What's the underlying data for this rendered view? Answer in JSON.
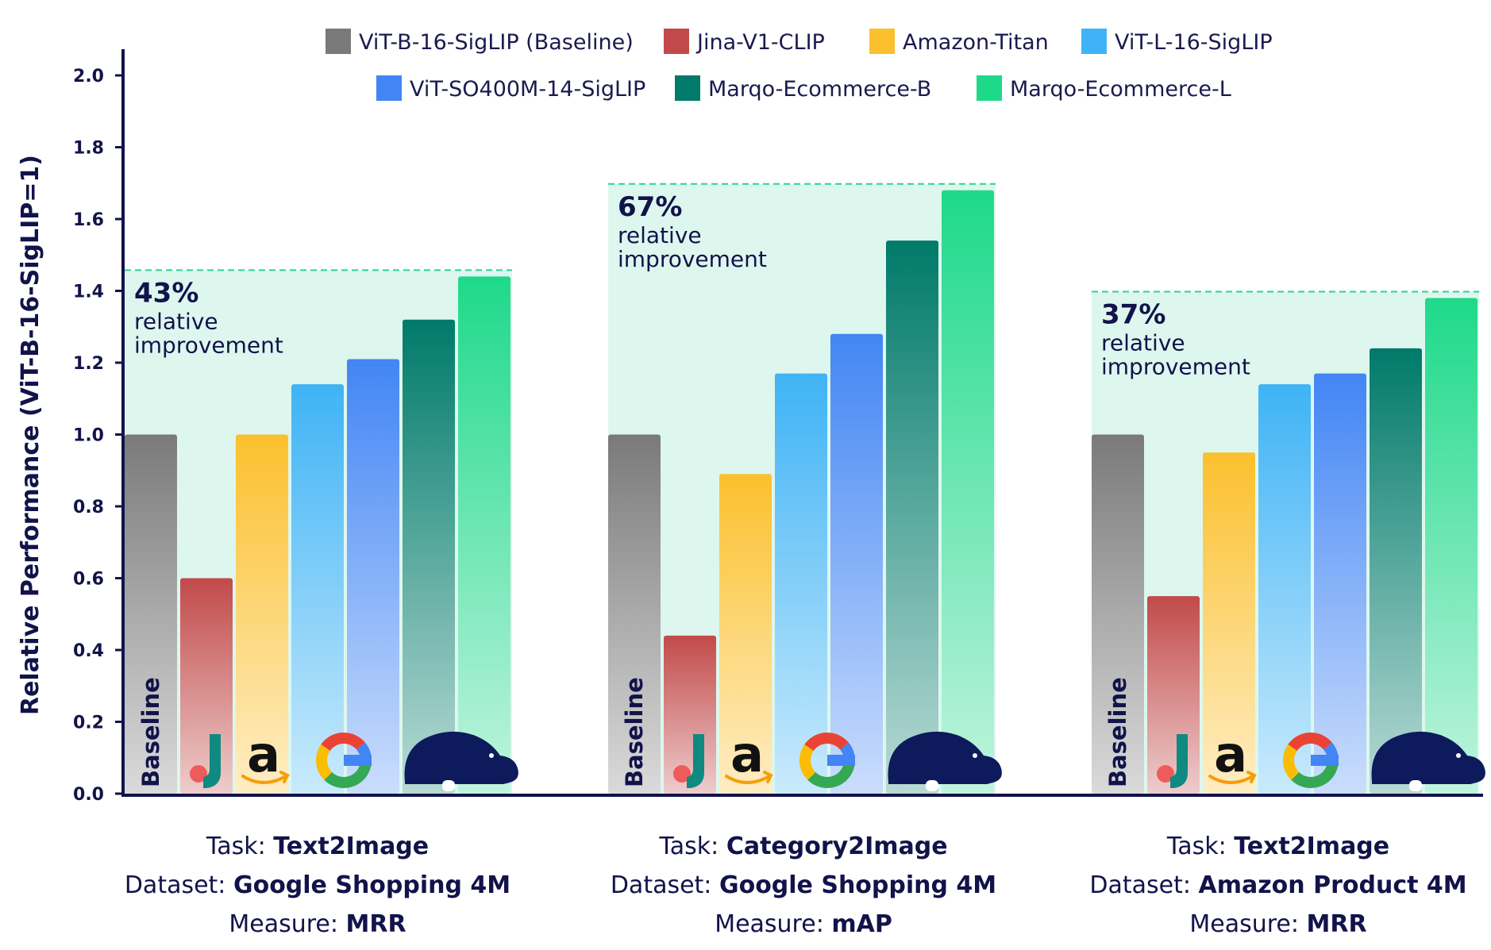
{
  "chart_data": {
    "type": "bar",
    "ylabel": "Relative Performance (ViT-B-16-SigLIP=1)",
    "ylim": [
      0,
      2.0
    ],
    "yticks": [
      "0.0",
      "0.2",
      "0.4",
      "0.6",
      "0.8",
      "1.0",
      "1.2",
      "1.4",
      "1.6",
      "1.8",
      "2.0"
    ],
    "grid": false,
    "legend_position": "top",
    "series": [
      {
        "name": "ViT-B-16-SigLIP (Baseline)",
        "color": "#7a7a7a",
        "icon": "baseline-label"
      },
      {
        "name": "Jina-V1-CLIP",
        "color": "#c24a4a",
        "icon": "jina-logo"
      },
      {
        "name": "Amazon-Titan",
        "color": "#fbc02d",
        "icon": "amazon-logo"
      },
      {
        "name": "ViT-L-16-SigLIP",
        "color": "#3fb3f5",
        "icon": "google-logo"
      },
      {
        "name": "ViT-SO400M-14-SigLIP",
        "color": "#4285f4",
        "icon": "google-logo"
      },
      {
        "name": "Marqo-Ecommerce-B",
        "color": "#007a6a",
        "icon": "hippo-logo"
      },
      {
        "name": "Marqo-Ecommerce-L",
        "color": "#1ed98a",
        "icon": "hippo-logo"
      }
    ],
    "groups": [
      {
        "task_key": "Task: ",
        "task": "Text2Image",
        "dataset_key": "Dataset: ",
        "dataset": "Google Shopping 4M",
        "measure_key": "Measure: ",
        "measure": "MRR",
        "improvement_pct": "43%",
        "improvement_l1": "relative",
        "improvement_l2": "improvement",
        "values": [
          1.0,
          0.6,
          1.0,
          1.14,
          1.21,
          1.32,
          1.44
        ]
      },
      {
        "task_key": "Task: ",
        "task": "Category2Image",
        "dataset_key": "Dataset: ",
        "dataset": "Google Shopping 4M",
        "measure_key": "Measure: ",
        "measure": "mAP",
        "improvement_pct": "67%",
        "improvement_l1": "relative",
        "improvement_l2": "improvement",
        "values": [
          1.0,
          0.44,
          0.89,
          1.17,
          1.28,
          1.54,
          1.68
        ]
      },
      {
        "task_key": "Task: ",
        "task": "Text2Image",
        "dataset_key": "Dataset: ",
        "dataset": "Amazon Product 4M",
        "measure_key": "Measure: ",
        "measure": "MRR",
        "improvement_pct": "37%",
        "improvement_l1": "relative",
        "improvement_l2": "improvement",
        "values": [
          1.0,
          0.55,
          0.95,
          1.14,
          1.17,
          1.24,
          1.38
        ]
      }
    ],
    "baseline_bar_label": "Baseline",
    "improvement_fill": "#ddf7ee",
    "improvement_line": "#2bd48c",
    "axis_color": "#12134a"
  }
}
